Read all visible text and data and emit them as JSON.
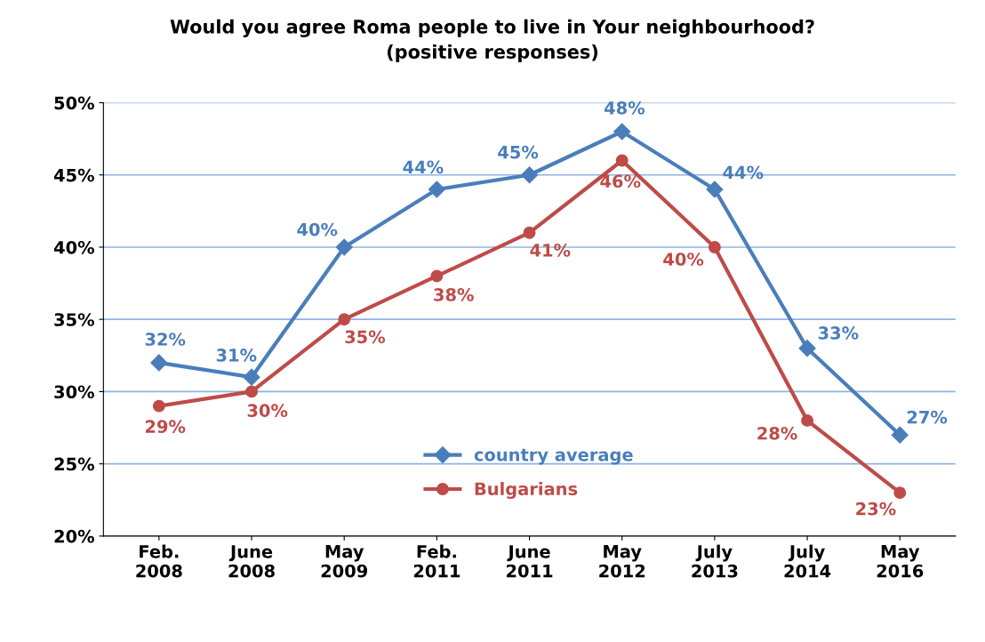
{
  "chart_data": {
    "type": "line",
    "title": "Would you agree Roma people to live in Your neighbourhood?\n(positive responses)",
    "categories": [
      "Feb.\n2008",
      "June\n2008",
      "May\n2009",
      "Feb.\n2011",
      "June\n2011",
      "May\n2012",
      "July\n2013",
      "July\n2014",
      "May\n2016"
    ],
    "series": [
      {
        "name": "country average",
        "color": "#4a7ebb",
        "marker": "diamond",
        "values": [
          32,
          31,
          40,
          44,
          45,
          48,
          44,
          33,
          27
        ],
        "value_labels": [
          "32%",
          "31%",
          "40%",
          "44%",
          "45%",
          "48%",
          "44%",
          "33%",
          "27%"
        ]
      },
      {
        "name": "Bulgarians",
        "color": "#be4b48",
        "marker": "circle",
        "values": [
          29,
          30,
          35,
          38,
          41,
          46,
          40,
          28,
          23
        ],
        "value_labels": [
          "29%",
          "30%",
          "35%",
          "38%",
          "41%",
          "46%",
          "40%",
          "28%",
          "23%"
        ]
      }
    ],
    "ylim": [
      20,
      50
    ],
    "yticks": [
      {
        "value": 20,
        "label": "20%"
      },
      {
        "value": 25,
        "label": "25%"
      },
      {
        "value": 30,
        "label": "30%"
      },
      {
        "value": 35,
        "label": "35%"
      },
      {
        "value": 40,
        "label": "40%"
      },
      {
        "value": 45,
        "label": "45%"
      },
      {
        "value": 50,
        "label": "50%"
      }
    ],
    "grid": "y",
    "legend": "bottom",
    "line_style": "solid"
  }
}
